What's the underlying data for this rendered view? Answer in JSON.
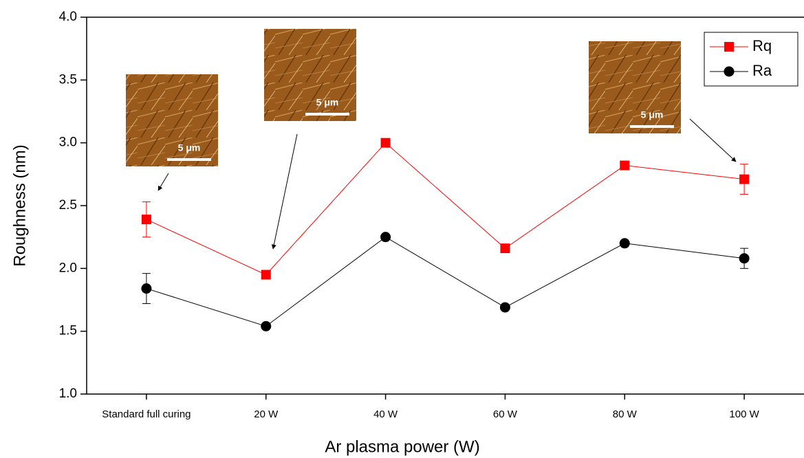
{
  "chart_data": {
    "type": "line",
    "x_label": "Ar plasma power (W)",
    "y_label": "Roughness (nm)",
    "categories": [
      "Standard full curing",
      "20 W",
      "40 W",
      "60 W",
      "80 W",
      "100 W"
    ],
    "series": [
      {
        "name": "Rq",
        "color": "#ff0000",
        "marker": "square",
        "values": [
          2.39,
          1.95,
          3.0,
          2.16,
          2.82,
          2.71
        ],
        "errors": [
          0.14,
          0.03,
          0.03,
          0.01,
          0.01,
          0.12
        ]
      },
      {
        "name": "Ra",
        "color": "#000000",
        "marker": "circle",
        "values": [
          1.84,
          1.54,
          2.25,
          1.69,
          2.2,
          2.08
        ],
        "errors": [
          0.12,
          0.02,
          0.02,
          0.01,
          0.01,
          0.08
        ]
      }
    ],
    "ylim": [
      1.0,
      4.0
    ],
    "yticks": [
      {
        "value": 1,
        "label": "1.0"
      },
      1.5,
      {
        "value": 2,
        "label": "2.0"
      },
      2.5,
      {
        "value": 3,
        "label": "3.0"
      },
      3.5,
      {
        "value": 4,
        "label": "4.0"
      }
    ],
    "legend": "top-right",
    "insets": [
      {
        "scale_bar": "5 μm"
      },
      {
        "scale_bar": "5 μm"
      },
      {
        "scale_bar": "5 μm"
      }
    ]
  }
}
